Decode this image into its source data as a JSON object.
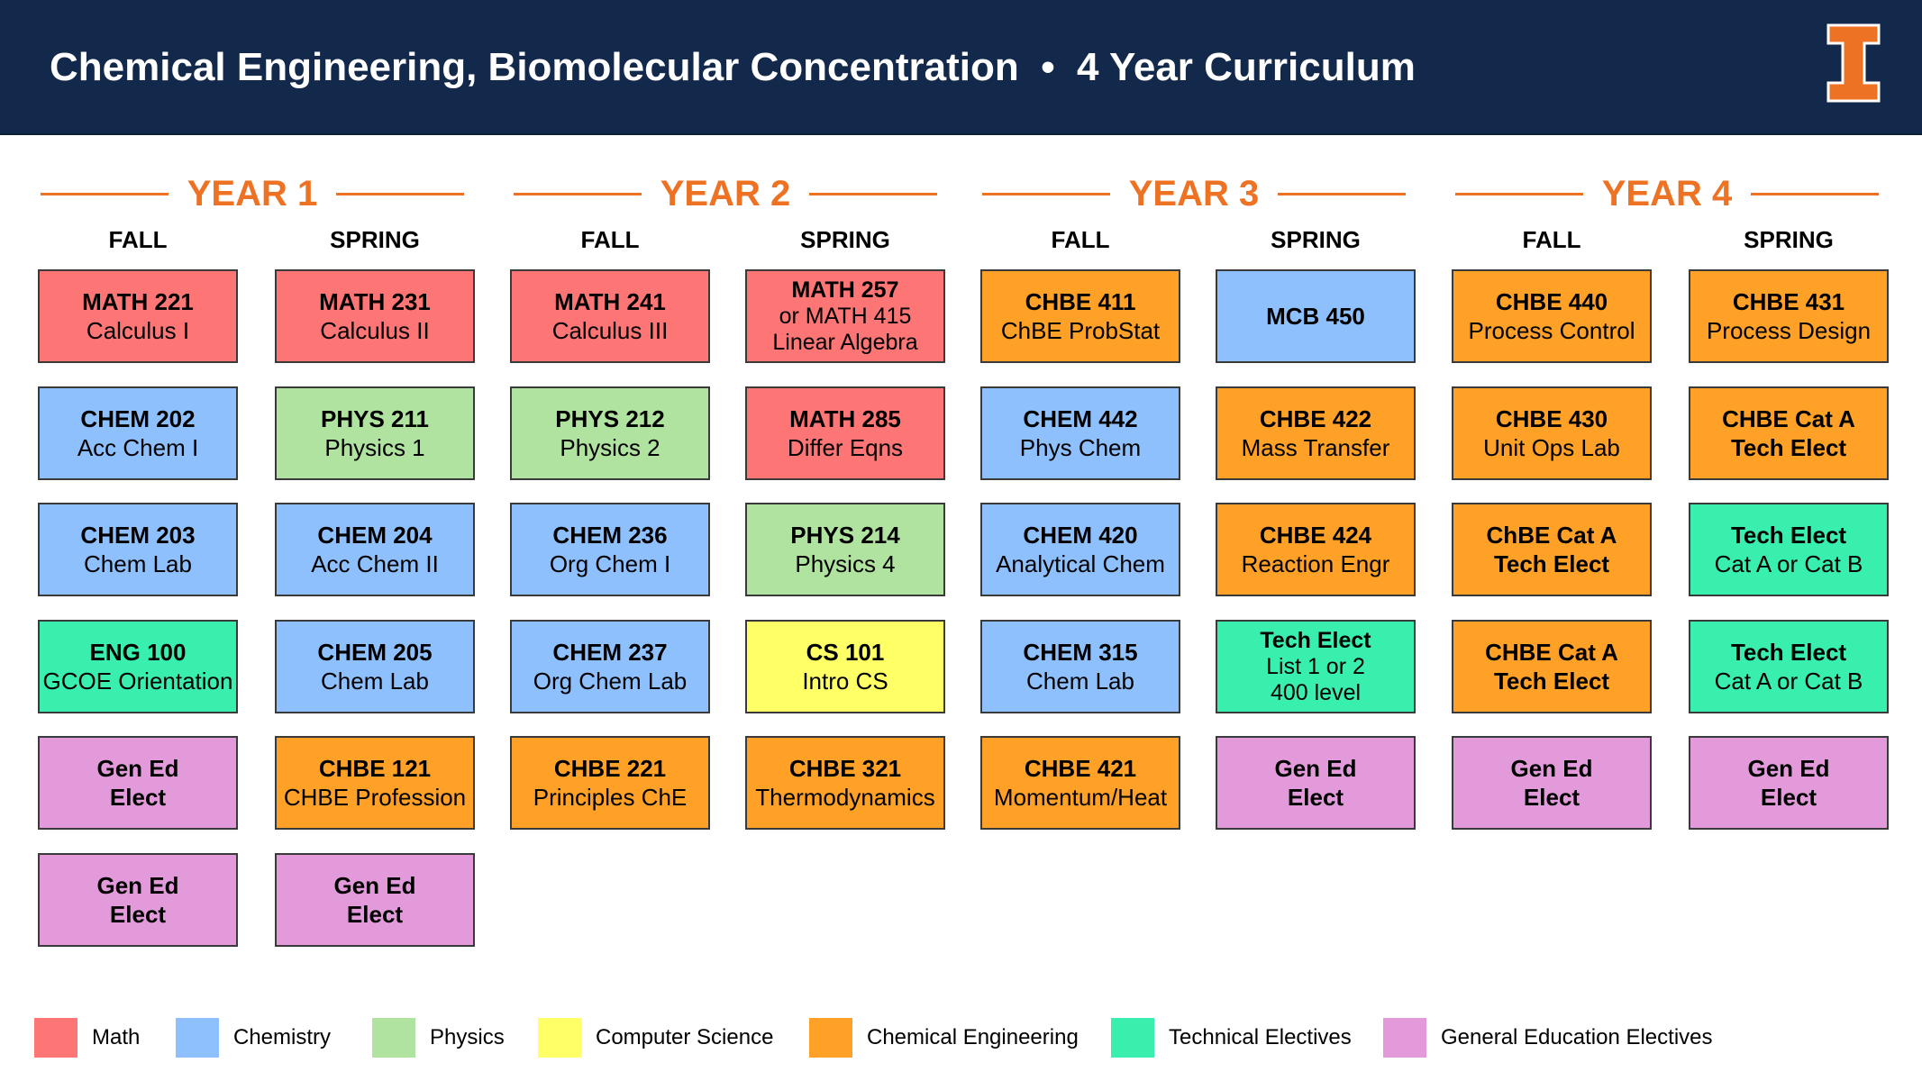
{
  "header": {
    "title": "Chemical Engineering, Biomolecular Concentration  •  4 Year Curriculum",
    "logo_alt": "I"
  },
  "years": [
    {
      "label": "YEAR 1",
      "semesters": [
        {
          "label": "FALL",
          "courses": [
            {
              "category": "math",
              "lines": [
                "MATH 221",
                "Calculus I"
              ]
            },
            {
              "category": "chem",
              "lines": [
                "CHEM 202",
                "Acc Chem I"
              ]
            },
            {
              "category": "chem",
              "lines": [
                "CHEM 203",
                "Chem Lab"
              ]
            },
            {
              "category": "tech",
              "lines": [
                "ENG 100",
                "GCOE Orientation"
              ]
            },
            {
              "category": "gen",
              "lines": [
                "Gen Ed",
                "Elect"
              ]
            },
            {
              "category": "gen",
              "lines": [
                "Gen Ed",
                "Elect"
              ]
            }
          ]
        },
        {
          "label": "SPRING",
          "courses": [
            {
              "category": "math",
              "lines": [
                "MATH 231",
                "Calculus II"
              ]
            },
            {
              "category": "phys",
              "lines": [
                "PHYS 211",
                "Physics 1"
              ]
            },
            {
              "category": "chem",
              "lines": [
                "CHEM 204",
                "Acc Chem II"
              ]
            },
            {
              "category": "chem",
              "lines": [
                "CHEM 205",
                "Chem Lab"
              ]
            },
            {
              "category": "che",
              "lines": [
                "CHBE 121",
                "CHBE Profession"
              ]
            },
            {
              "category": "gen",
              "lines": [
                "Gen Ed",
                "Elect"
              ]
            }
          ]
        }
      ]
    },
    {
      "label": "YEAR 2",
      "semesters": [
        {
          "label": "FALL",
          "courses": [
            {
              "category": "math",
              "lines": [
                "MATH 241",
                "Calculus III"
              ]
            },
            {
              "category": "phys",
              "lines": [
                "PHYS 212",
                "Physics 2"
              ]
            },
            {
              "category": "chem",
              "lines": [
                "CHEM 236",
                "Org Chem I"
              ]
            },
            {
              "category": "chem",
              "lines": [
                "CHEM 237",
                "Org Chem Lab"
              ]
            },
            {
              "category": "che",
              "lines": [
                "CHBE 221",
                "Principles ChE"
              ]
            }
          ]
        },
        {
          "label": "SPRING",
          "courses": [
            {
              "category": "math",
              "lines": [
                "MATH 257",
                "or MATH 415",
                "Linear Algebra"
              ]
            },
            {
              "category": "math",
              "lines": [
                "MATH 285",
                "Differ Eqns"
              ]
            },
            {
              "category": "phys",
              "lines": [
                "PHYS 214",
                "Physics 4"
              ]
            },
            {
              "category": "cs",
              "lines": [
                "CS 101",
                "Intro CS"
              ]
            },
            {
              "category": "che",
              "lines": [
                "CHBE 321",
                "Thermodynamics"
              ]
            }
          ]
        }
      ]
    },
    {
      "label": "YEAR 3",
      "semesters": [
        {
          "label": "FALL",
          "courses": [
            {
              "category": "che",
              "lines": [
                "CHBE 411",
                "ChBE ProbStat"
              ]
            },
            {
              "category": "chem",
              "lines": [
                "CHEM 442",
                "Phys Chem"
              ]
            },
            {
              "category": "chem",
              "lines": [
                "CHEM 420",
                "Analytical Chem"
              ]
            },
            {
              "category": "chem",
              "lines": [
                "CHEM 315",
                "Chem Lab"
              ]
            },
            {
              "category": "che",
              "lines": [
                "CHBE 421",
                "Momentum/Heat"
              ]
            }
          ]
        },
        {
          "label": "SPRING",
          "courses": [
            {
              "category": "chem",
              "lines": [
                "MCB 450"
              ]
            },
            {
              "category": "che",
              "lines": [
                "CHBE 422",
                "Mass Transfer"
              ]
            },
            {
              "category": "che",
              "lines": [
                "CHBE 424",
                "Reaction Engr"
              ]
            },
            {
              "category": "tech",
              "lines": [
                "Tech Elect",
                "List 1 or 2",
                "400 level"
              ]
            },
            {
              "category": "gen",
              "lines": [
                "Gen Ed",
                "Elect"
              ]
            }
          ]
        }
      ]
    },
    {
      "label": "YEAR 4",
      "semesters": [
        {
          "label": "FALL",
          "courses": [
            {
              "category": "che",
              "lines": [
                "CHBE 440",
                "Process Control"
              ]
            },
            {
              "category": "che",
              "lines": [
                "CHBE 430",
                "Unit Ops Lab"
              ]
            },
            {
              "category": "che",
              "lines": [
                "ChBE Cat A",
                "Tech Elect"
              ]
            },
            {
              "category": "che",
              "lines": [
                "CHBE Cat A",
                "Tech Elect"
              ]
            },
            {
              "category": "gen",
              "lines": [
                "Gen Ed",
                "Elect"
              ]
            }
          ]
        },
        {
          "label": "SPRING",
          "courses": [
            {
              "category": "che",
              "lines": [
                "CHBE 431",
                "Process Design"
              ]
            },
            {
              "category": "che",
              "lines": [
                "CHBE Cat A",
                "Tech Elect"
              ]
            },
            {
              "category": "tech",
              "lines": [
                "Tech Elect",
                "Cat A or Cat B"
              ]
            },
            {
              "category": "tech",
              "lines": [
                "Tech Elect",
                "Cat A or Cat B"
              ]
            },
            {
              "category": "gen",
              "lines": [
                "Gen Ed",
                "Elect"
              ]
            }
          ]
        }
      ]
    }
  ],
  "legend": [
    {
      "category": "math",
      "label": "Math",
      "color": "#fd7575"
    },
    {
      "category": "chem",
      "label": "Chemistry",
      "color": "#8ec0fd"
    },
    {
      "category": "phys",
      "label": "Physics",
      "color": "#b0e3a0"
    },
    {
      "category": "cs",
      "label": "Computer Science",
      "color": "#ffff66"
    },
    {
      "category": "che",
      "label": "Chemical Engineering",
      "color": "#fea126"
    },
    {
      "category": "tech",
      "label": "Technical Electives",
      "color": "#39efae"
    },
    {
      "category": "gen",
      "label": "General Education Electives",
      "color": "#e29ada"
    }
  ],
  "colors": {
    "header_bg": "#13294b",
    "accent_orange": "#ee7223"
  }
}
